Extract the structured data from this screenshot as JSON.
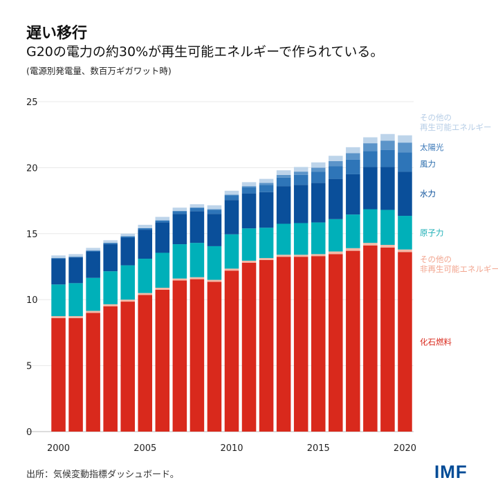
{
  "title": "遅い移行",
  "subtitle": "G20の電力の約30%が再生可能エネルギーで作られている。",
  "note": "(電源別発電量、数百万ギガワット時)",
  "source": "出所：気候変動指標ダッシュボード。",
  "logo": "IMF",
  "chart_data": {
    "type": "bar",
    "stacked": true,
    "x": [
      2000,
      2001,
      2002,
      2003,
      2004,
      2005,
      2006,
      2007,
      2008,
      2009,
      2010,
      2011,
      2012,
      2013,
      2014,
      2015,
      2016,
      2017,
      2018,
      2019,
      2020
    ],
    "xticks": [
      "2000",
      "2005",
      "2010",
      "2015",
      "2020"
    ],
    "yticks": [
      "0",
      "5",
      "10",
      "15",
      "20",
      "25"
    ],
    "ylim": [
      0,
      25
    ],
    "grid": true,
    "legend_placement": "right",
    "series": [
      {
        "name": "化石燃料",
        "color": "#d9291c",
        "values": [
          8.6,
          8.6,
          9.0,
          9.5,
          9.85,
          10.35,
          10.75,
          11.45,
          11.55,
          11.35,
          12.2,
          12.8,
          13.0,
          13.25,
          13.25,
          13.3,
          13.45,
          13.7,
          14.1,
          13.95,
          13.6
        ]
      },
      {
        "name": "その他の\n非再生可能エネルギー",
        "color": "#f5b8a6",
        "values": [
          0.15,
          0.15,
          0.15,
          0.15,
          0.15,
          0.15,
          0.15,
          0.15,
          0.15,
          0.15,
          0.15,
          0.15,
          0.15,
          0.15,
          0.15,
          0.15,
          0.2,
          0.2,
          0.2,
          0.2,
          0.2
        ]
      },
      {
        "name": "原子力",
        "color": "#00b0b9",
        "values": [
          2.4,
          2.5,
          2.5,
          2.5,
          2.6,
          2.6,
          2.65,
          2.6,
          2.6,
          2.55,
          2.6,
          2.45,
          2.3,
          2.35,
          2.4,
          2.4,
          2.45,
          2.55,
          2.55,
          2.65,
          2.55
        ]
      },
      {
        "name": "水力",
        "color": "#0a4f9a",
        "values": [
          1.95,
          1.95,
          2.0,
          2.05,
          2.1,
          2.2,
          2.3,
          2.3,
          2.4,
          2.45,
          2.6,
          2.65,
          2.7,
          2.85,
          2.9,
          3.0,
          3.05,
          3.05,
          3.2,
          3.25,
          3.35
        ]
      },
      {
        "name": "風力",
        "color": "#2e75b8",
        "values": [
          0.05,
          0.05,
          0.07,
          0.1,
          0.1,
          0.12,
          0.15,
          0.2,
          0.25,
          0.3,
          0.35,
          0.45,
          0.55,
          0.65,
          0.75,
          0.85,
          0.95,
          1.1,
          1.2,
          1.3,
          1.45
        ]
      },
      {
        "name": "太陽光",
        "color": "#5b94c9",
        "values": [
          0,
          0,
          0,
          0,
          0,
          0,
          0.02,
          0.02,
          0.03,
          0.05,
          0.05,
          0.1,
          0.15,
          0.2,
          0.25,
          0.3,
          0.4,
          0.5,
          0.6,
          0.7,
          0.75
        ]
      },
      {
        "name": "その他の\n再生可能エネルギー",
        "color": "#bdd4ea",
        "values": [
          0.2,
          0.2,
          0.2,
          0.2,
          0.2,
          0.25,
          0.25,
          0.25,
          0.25,
          0.3,
          0.3,
          0.3,
          0.3,
          0.35,
          0.35,
          0.4,
          0.4,
          0.45,
          0.45,
          0.5,
          0.55
        ]
      }
    ]
  }
}
